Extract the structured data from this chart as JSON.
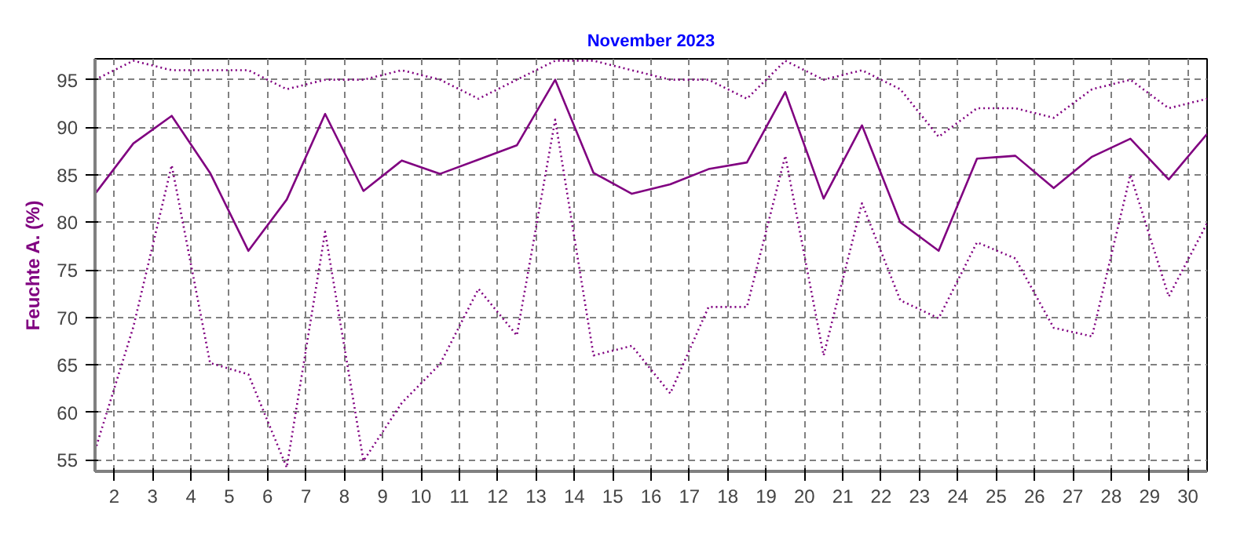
{
  "chart_data": {
    "type": "line",
    "title": "November 2023",
    "ylabel": "Feuchte A. (%)",
    "x": [
      1.5,
      2.5,
      3.5,
      4.5,
      5.5,
      6.5,
      7.5,
      8.5,
      9.5,
      10.5,
      11.5,
      12.5,
      13.5,
      14.5,
      15.5,
      16.5,
      17.5,
      18.5,
      19.5,
      20.5,
      21.5,
      22.5,
      23.5,
      24.5,
      25.5,
      26.5,
      27.5,
      28.5,
      29.5,
      30.5
    ],
    "series": [
      {
        "color": "#800080",
        "line_style": "dotted",
        "values": [
          95,
          97,
          96,
          96,
          96,
          94,
          95,
          95,
          96,
          95,
          93,
          95,
          97,
          97,
          96,
          95,
          95,
          93,
          97,
          95,
          96,
          94,
          89,
          92,
          92,
          91,
          94,
          95,
          92,
          93
        ]
      },
      {
        "color": "#800080",
        "line_style": "solid",
        "values": [
          83,
          88.3,
          91.2,
          85.2,
          77,
          82.4,
          91.4,
          83.3,
          86.5,
          85.1,
          86.6,
          88.1,
          95,
          85.2,
          83,
          84,
          85.6,
          86.3,
          93.7,
          82.5,
          90.2,
          80,
          77,
          86.7,
          87,
          83.6,
          86.9,
          88.8,
          84.5,
          89.3
        ]
      },
      {
        "color": "#800080",
        "line_style": "dotted",
        "values": [
          56,
          69,
          86,
          65.2,
          64,
          54.2,
          79,
          54.9,
          61,
          65.1,
          73,
          68.1,
          90.8,
          66,
          67,
          62,
          71.1,
          71.1,
          87,
          66,
          82,
          71.8,
          69.9,
          77.9,
          76.2,
          68.9,
          68,
          85,
          72.2,
          79.9
        ]
      }
    ],
    "xlim": [
      1.5,
      30.5
    ],
    "xticks": [
      2,
      3,
      4,
      5,
      6,
      7,
      8,
      9,
      10,
      11,
      12,
      13,
      14,
      15,
      16,
      17,
      18,
      19,
      20,
      21,
      22,
      23,
      24,
      25,
      26,
      27,
      28,
      29,
      30
    ],
    "ylim": [
      53.8,
      97.2
    ],
    "yticks": [
      55,
      60,
      65,
      70,
      75,
      80,
      85,
      90,
      95
    ],
    "grid": true,
    "marker": "none"
  }
}
